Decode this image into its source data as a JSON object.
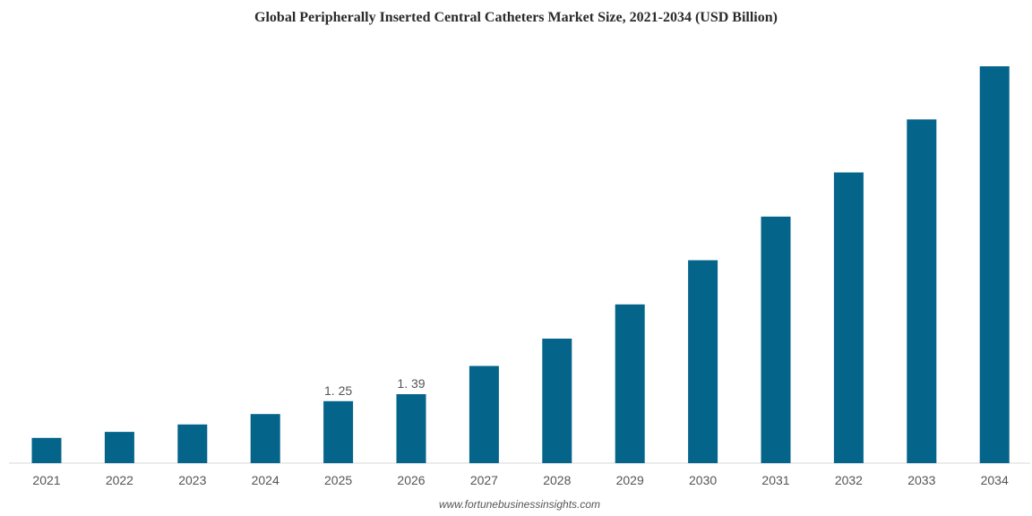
{
  "chart_data": {
    "type": "bar",
    "title": "Global Peripherally Inserted Central Catheters Market Size, 2021-2034 (USD Billion)",
    "categories": [
      "2021",
      "2022",
      "2023",
      "2024",
      "2025",
      "2026",
      "2027",
      "2028",
      "2029",
      "2030",
      "2031",
      "2032",
      "2033",
      "2034"
    ],
    "values": [
      0.51,
      0.63,
      0.78,
      0.99,
      1.25,
      1.39,
      1.96,
      2.51,
      3.2,
      4.09,
      4.97,
      5.86,
      6.93,
      8.0
    ],
    "data_labels": [
      "",
      "",
      "",
      "",
      "1. 25",
      "1. 39",
      "",
      "",
      "",
      "",
      "",
      "",
      "",
      ""
    ],
    "ylim": [
      0,
      8.0
    ],
    "grid": false,
    "legend": "none",
    "bar_color": "#05648a"
  },
  "source": "www.fortunebusinessinsights.com"
}
